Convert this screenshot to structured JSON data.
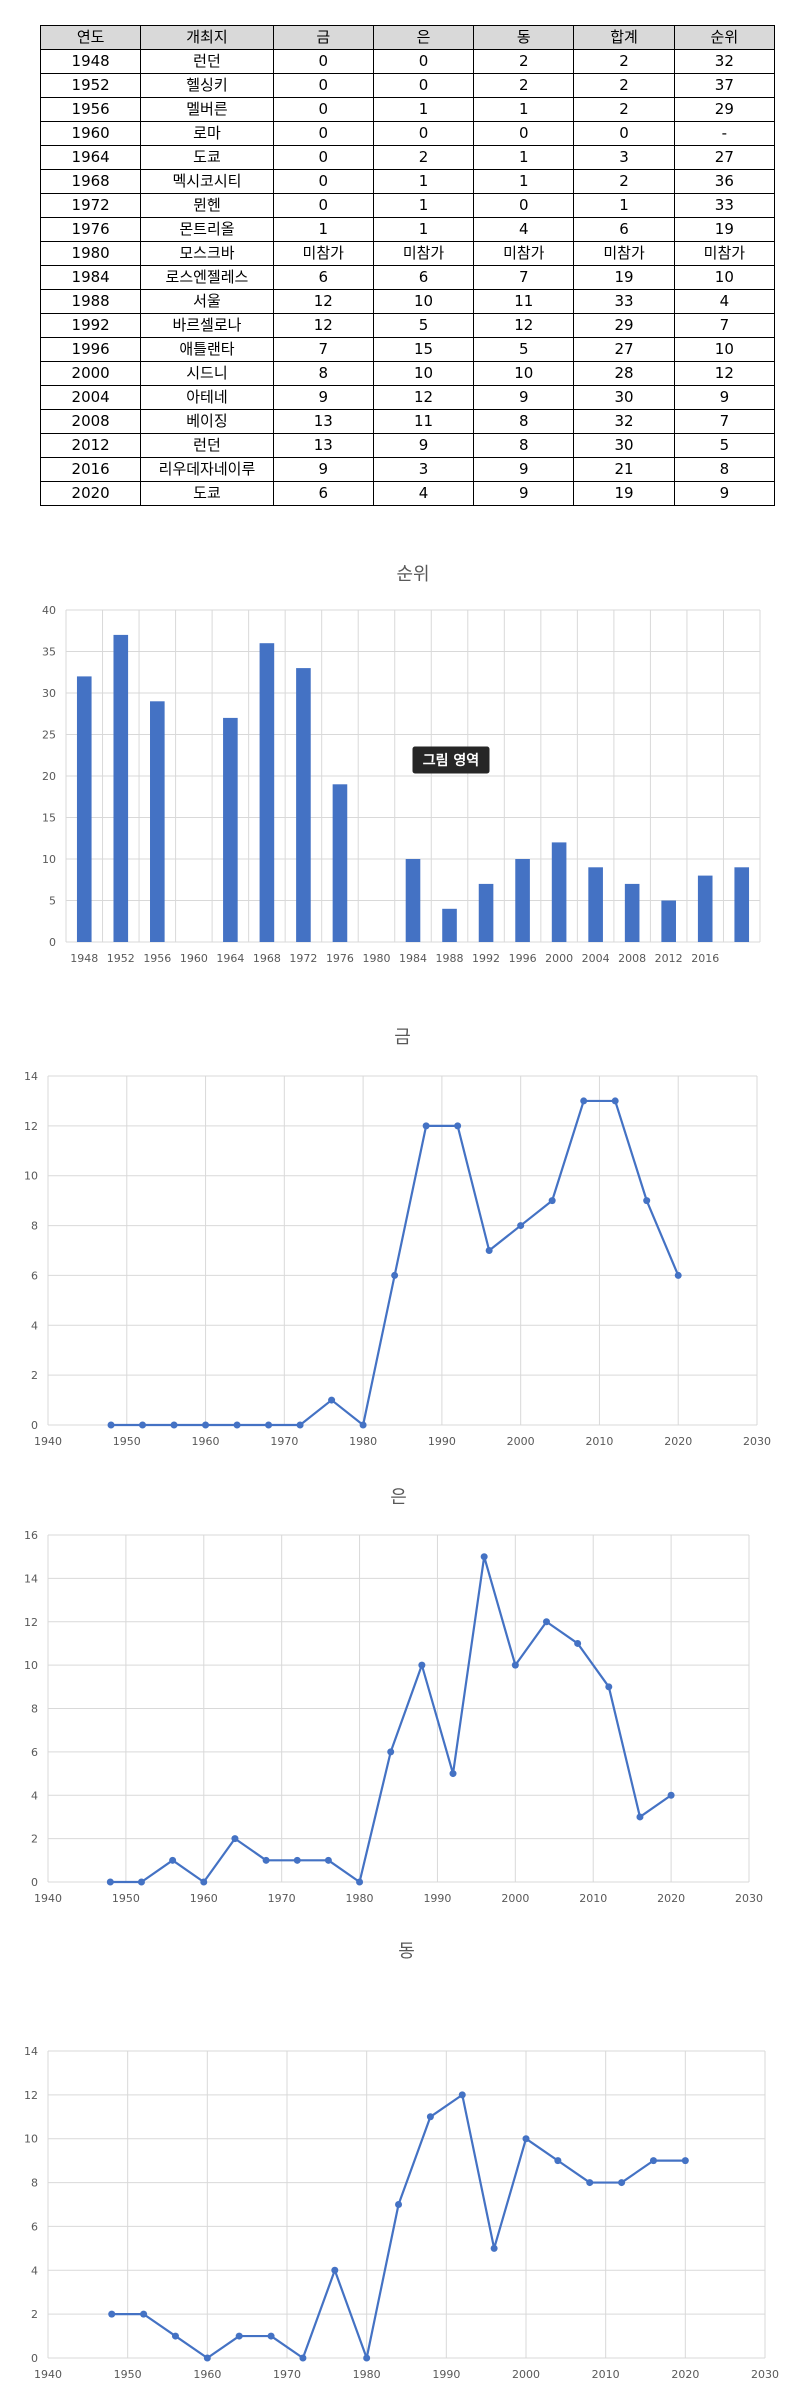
{
  "table": {
    "headers": [
      "연도",
      "개최지",
      "금",
      "은",
      "동",
      "합계",
      "순위"
    ],
    "rows": [
      [
        "1948",
        "런던",
        "0",
        "0",
        "2",
        "2",
        "32"
      ],
      [
        "1952",
        "헬싱키",
        "0",
        "0",
        "2",
        "2",
        "37"
      ],
      [
        "1956",
        "멜버른",
        "0",
        "1",
        "1",
        "2",
        "29"
      ],
      [
        "1960",
        "로마",
        "0",
        "0",
        "0",
        "0",
        "-"
      ],
      [
        "1964",
        "도쿄",
        "0",
        "2",
        "1",
        "3",
        "27"
      ],
      [
        "1968",
        "멕시코시티",
        "0",
        "1",
        "1",
        "2",
        "36"
      ],
      [
        "1972",
        "뮌헨",
        "0",
        "1",
        "0",
        "1",
        "33"
      ],
      [
        "1976",
        "몬트리올",
        "1",
        "1",
        "4",
        "6",
        "19"
      ],
      [
        "1980",
        "모스크바",
        "미참가",
        "미참가",
        "미참가",
        "미참가",
        "미참가"
      ],
      [
        "1984",
        "로스엔젤레스",
        "6",
        "6",
        "7",
        "19",
        "10"
      ],
      [
        "1988",
        "서울",
        "12",
        "10",
        "11",
        "33",
        "4"
      ],
      [
        "1992",
        "바르셀로나",
        "12",
        "5",
        "12",
        "29",
        "7"
      ],
      [
        "1996",
        "애틀랜타",
        "7",
        "15",
        "5",
        "27",
        "10"
      ],
      [
        "2000",
        "시드니",
        "8",
        "10",
        "10",
        "28",
        "12"
      ],
      [
        "2004",
        "아테네",
        "9",
        "12",
        "9",
        "30",
        "9"
      ],
      [
        "2008",
        "베이징",
        "13",
        "11",
        "8",
        "32",
        "7"
      ],
      [
        "2012",
        "런던",
        "13",
        "9",
        "8",
        "30",
        "5"
      ],
      [
        "2016",
        "리우데자네이루",
        "9",
        "3",
        "9",
        "21",
        "8"
      ],
      [
        "2020",
        "도쿄",
        "6",
        "4",
        "9",
        "19",
        "9"
      ]
    ]
  },
  "colors": {
    "series": "#4472c4",
    "grid": "#d9d9d9",
    "header_bg": "#d9d9d9",
    "tooltip_bg": "#262626"
  },
  "tooltip": "그림 영역",
  "chart_data": [
    {
      "type": "bar",
      "title": "순위",
      "categories": [
        "1948",
        "1952",
        "1956",
        "1960",
        "1964",
        "1968",
        "1972",
        "1976",
        "1980",
        "1984",
        "1988",
        "1992",
        "1996",
        "2000",
        "2004",
        "2008",
        "2012",
        "2016",
        ""
      ],
      "values": [
        32,
        37,
        29,
        null,
        27,
        36,
        33,
        19,
        null,
        10,
        4,
        7,
        10,
        12,
        9,
        7,
        5,
        8,
        9
      ],
      "ylim": [
        0,
        40
      ],
      "yticks": [
        0,
        5,
        10,
        15,
        20,
        25,
        30,
        35,
        40
      ],
      "grid": true
    },
    {
      "type": "scatter",
      "title": "금",
      "x": [
        1948,
        1952,
        1956,
        1960,
        1964,
        1968,
        1972,
        1976,
        1980,
        1984,
        1988,
        1992,
        1996,
        2000,
        2004,
        2008,
        2012,
        2016,
        2020
      ],
      "y": [
        0,
        0,
        0,
        0,
        0,
        0,
        0,
        1,
        0,
        6,
        12,
        12,
        7,
        8,
        9,
        13,
        13,
        9,
        6
      ],
      "xlim": [
        1940,
        2030
      ],
      "xticks": [
        1940,
        1950,
        1960,
        1970,
        1980,
        1990,
        2000,
        2010,
        2020,
        2030
      ],
      "ylim": [
        0,
        14
      ],
      "yticks": [
        0,
        2,
        4,
        6,
        8,
        10,
        12,
        14
      ],
      "grid": true
    },
    {
      "type": "scatter",
      "title": "은",
      "x": [
        1948,
        1952,
        1956,
        1960,
        1964,
        1968,
        1972,
        1976,
        1980,
        1984,
        1988,
        1992,
        1996,
        2000,
        2004,
        2008,
        2012,
        2016,
        2020
      ],
      "y": [
        0,
        0,
        1,
        0,
        2,
        1,
        1,
        1,
        0,
        6,
        10,
        5,
        15,
        10,
        12,
        11,
        9,
        3,
        4
      ],
      "xlim": [
        1940,
        2030
      ],
      "xticks": [
        1940,
        1950,
        1960,
        1970,
        1980,
        1990,
        2000,
        2010,
        2020,
        2030
      ],
      "ylim": [
        0,
        16
      ],
      "yticks": [
        0,
        2,
        4,
        6,
        8,
        10,
        12,
        14,
        16
      ],
      "grid": true
    },
    {
      "type": "scatter",
      "title": "동",
      "x": [
        1948,
        1952,
        1956,
        1960,
        1964,
        1968,
        1972,
        1976,
        1980,
        1984,
        1988,
        1992,
        1996,
        2000,
        2004,
        2008,
        2012,
        2016,
        2020
      ],
      "y": [
        2,
        2,
        1,
        0,
        1,
        1,
        0,
        4,
        0,
        7,
        11,
        12,
        5,
        10,
        9,
        8,
        8,
        9,
        9
      ],
      "xlim": [
        1940,
        2030
      ],
      "xticks": [
        1940,
        1950,
        1960,
        1970,
        1980,
        1990,
        2000,
        2010,
        2020,
        2030
      ],
      "ylim": [
        0,
        14
      ],
      "yticks": [
        0,
        2,
        4,
        6,
        8,
        10,
        12,
        14
      ],
      "grid": true
    }
  ]
}
